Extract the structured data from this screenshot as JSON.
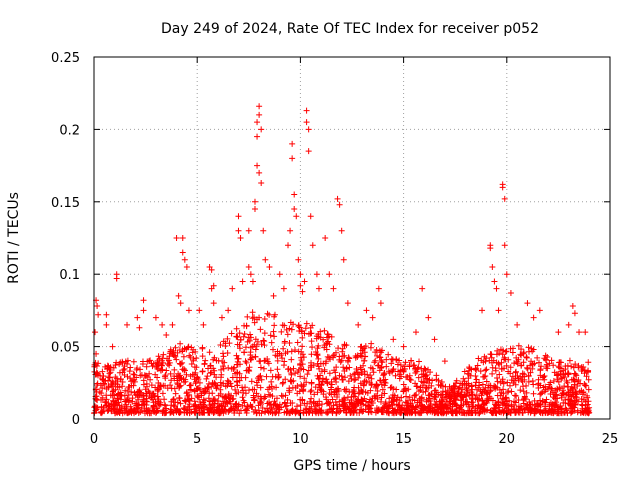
{
  "chart_data": {
    "type": "scatter",
    "title": "Day 249 of 2024, Rate Of TEC Index for receiver p052",
    "xlabel": "GPS time / hours",
    "ylabel": "ROTI / TECUs",
    "xlim": [
      0,
      25
    ],
    "ylim": [
      0,
      0.25
    ],
    "xticks": [
      0,
      5,
      10,
      15,
      20,
      25
    ],
    "xtick_labels": [
      "0",
      "5",
      "10",
      "15",
      "20",
      "25"
    ],
    "yticks": [
      0,
      0.05,
      0.1,
      0.15,
      0.2,
      0.25
    ],
    "ytick_labels": [
      "0",
      "0.05",
      "0.1",
      "0.15",
      "0.2",
      "0.25"
    ],
    "grid": true,
    "marker": "+",
    "color": "#ff0000",
    "series": [
      {
        "name": "ROTI",
        "points": [
          [
            0.1,
            0.082
          ],
          [
            0.15,
            0.078
          ],
          [
            0.2,
            0.072
          ],
          [
            0.05,
            0.06
          ],
          [
            0.1,
            0.045
          ],
          [
            0.6,
            0.072
          ],
          [
            0.6,
            0.065
          ],
          [
            1.1,
            0.1
          ],
          [
            1.1,
            0.097
          ],
          [
            0.9,
            0.05
          ],
          [
            1.6,
            0.065
          ],
          [
            2.1,
            0.07
          ],
          [
            2.2,
            0.063
          ],
          [
            2.4,
            0.082
          ],
          [
            2.4,
            0.075
          ],
          [
            3.0,
            0.07
          ],
          [
            3.3,
            0.065
          ],
          [
            3.5,
            0.058
          ],
          [
            3.8,
            0.065
          ],
          [
            4.0,
            0.125
          ],
          [
            4.1,
            0.085
          ],
          [
            4.3,
            0.125
          ],
          [
            4.3,
            0.115
          ],
          [
            4.4,
            0.11
          ],
          [
            4.5,
            0.105
          ],
          [
            4.2,
            0.08
          ],
          [
            4.6,
            0.075
          ],
          [
            5.1,
            0.075
          ],
          [
            5.3,
            0.065
          ],
          [
            5.7,
            0.09
          ],
          [
            5.8,
            0.092
          ],
          [
            5.8,
            0.08
          ],
          [
            5.6,
            0.105
          ],
          [
            5.7,
            0.103
          ],
          [
            6.2,
            0.07
          ],
          [
            6.5,
            0.075
          ],
          [
            6.7,
            0.09
          ],
          [
            7.0,
            0.14
          ],
          [
            7.0,
            0.13
          ],
          [
            7.1,
            0.125
          ],
          [
            7.2,
            0.095
          ],
          [
            7.5,
            0.105
          ],
          [
            7.5,
            0.13
          ],
          [
            7.6,
            0.1
          ],
          [
            7.7,
            0.095
          ],
          [
            7.8,
            0.15
          ],
          [
            7.8,
            0.145
          ],
          [
            7.9,
            0.205
          ],
          [
            7.9,
            0.195
          ],
          [
            8.0,
            0.216
          ],
          [
            8.0,
            0.21
          ],
          [
            8.1,
            0.2
          ],
          [
            7.9,
            0.175
          ],
          [
            8.0,
            0.17
          ],
          [
            8.1,
            0.163
          ],
          [
            8.2,
            0.13
          ],
          [
            8.3,
            0.11
          ],
          [
            8.5,
            0.105
          ],
          [
            8.7,
            0.085
          ],
          [
            9.0,
            0.1
          ],
          [
            9.2,
            0.09
          ],
          [
            9.4,
            0.12
          ],
          [
            9.5,
            0.13
          ],
          [
            9.6,
            0.19
          ],
          [
            9.6,
            0.18
          ],
          [
            9.7,
            0.155
          ],
          [
            9.7,
            0.145
          ],
          [
            9.8,
            0.14
          ],
          [
            9.9,
            0.11
          ],
          [
            10.0,
            0.1
          ],
          [
            10.0,
            0.092
          ],
          [
            10.1,
            0.088
          ],
          [
            10.2,
            0.095
          ],
          [
            10.3,
            0.213
          ],
          [
            10.3,
            0.205
          ],
          [
            10.4,
            0.2
          ],
          [
            10.4,
            0.185
          ],
          [
            10.5,
            0.14
          ],
          [
            10.6,
            0.12
          ],
          [
            10.8,
            0.1
          ],
          [
            10.9,
            0.09
          ],
          [
            11.2,
            0.125
          ],
          [
            11.4,
            0.1
          ],
          [
            11.6,
            0.09
          ],
          [
            11.8,
            0.152
          ],
          [
            11.9,
            0.148
          ],
          [
            12.0,
            0.13
          ],
          [
            12.1,
            0.11
          ],
          [
            12.3,
            0.08
          ],
          [
            12.8,
            0.065
          ],
          [
            13.2,
            0.075
          ],
          [
            13.5,
            0.07
          ],
          [
            13.8,
            0.09
          ],
          [
            13.9,
            0.08
          ],
          [
            14.5,
            0.055
          ],
          [
            15.0,
            0.05
          ],
          [
            15.6,
            0.06
          ],
          [
            15.9,
            0.09
          ],
          [
            16.2,
            0.07
          ],
          [
            16.5,
            0.055
          ],
          [
            17.0,
            0.04
          ],
          [
            18.5,
            0.035
          ],
          [
            18.8,
            0.075
          ],
          [
            19.2,
            0.12
          ],
          [
            19.2,
            0.118
          ],
          [
            19.3,
            0.105
          ],
          [
            19.4,
            0.095
          ],
          [
            19.5,
            0.09
          ],
          [
            19.6,
            0.075
          ],
          [
            19.8,
            0.162
          ],
          [
            19.8,
            0.16
          ],
          [
            19.9,
            0.152
          ],
          [
            19.9,
            0.12
          ],
          [
            20.0,
            0.1
          ],
          [
            20.2,
            0.087
          ],
          [
            20.5,
            0.065
          ],
          [
            21.0,
            0.08
          ],
          [
            21.3,
            0.07
          ],
          [
            21.6,
            0.075
          ],
          [
            22.5,
            0.06
          ],
          [
            23.0,
            0.065
          ],
          [
            23.2,
            0.078
          ],
          [
            23.3,
            0.073
          ],
          [
            23.5,
            0.06
          ],
          [
            23.8,
            0.06
          ]
        ]
      }
    ]
  }
}
